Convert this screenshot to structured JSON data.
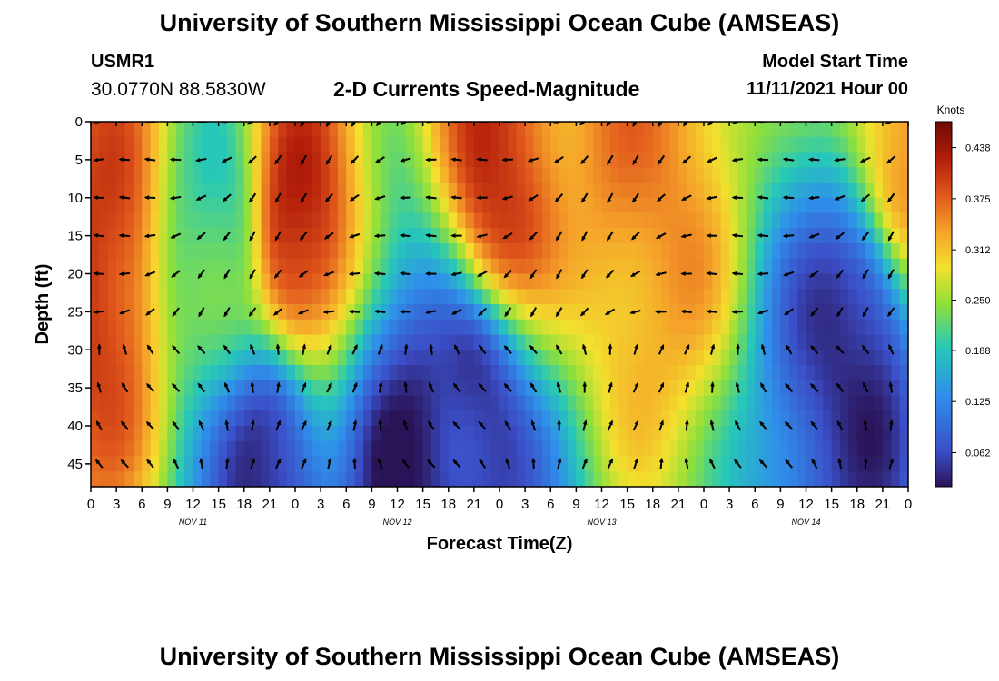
{
  "header": {
    "title": "University of Southern Mississippi Ocean Cube (AMSEAS)",
    "station_id": "USMR1",
    "station_coords": "30.0770N  88.5830W",
    "product": "2-D Currents Speed-Magnitude",
    "model_start_label": "Model Start Time",
    "model_start_value": "11/11/2021 Hour 00"
  },
  "footer": {
    "title": "University of Southern Mississippi Ocean Cube (AMSEAS)"
  },
  "chart_data": {
    "type": "heatmap",
    "title": "2-D Currents Speed-Magnitude",
    "xlabel": "Forecast Time(Z)",
    "ylabel": "Depth (ft)",
    "x_tick_labels": [
      "0",
      "3",
      "6",
      "9",
      "12",
      "15",
      "18",
      "21",
      "0",
      "3",
      "6",
      "9",
      "12",
      "15",
      "18",
      "21",
      "0",
      "3",
      "6",
      "9",
      "12",
      "15",
      "18",
      "21",
      "0",
      "3",
      "6",
      "9",
      "12",
      "15",
      "18",
      "21",
      "0"
    ],
    "x_hours": [
      0,
      3,
      6,
      9,
      12,
      15,
      18,
      21,
      24,
      27,
      30,
      33,
      36,
      39,
      42,
      45,
      48,
      51,
      54,
      57,
      60,
      63,
      66,
      69,
      72,
      75,
      78,
      81,
      84,
      87,
      90,
      93,
      96
    ],
    "xlim_hours": [
      0,
      96
    ],
    "date_labels": [
      {
        "text": "NOV 11",
        "hour": 12
      },
      {
        "text": "NOV 12",
        "hour": 36
      },
      {
        "text": "NOV 13",
        "hour": 60
      },
      {
        "text": "NOV 14",
        "hour": 84
      }
    ],
    "y_ticks": [
      0,
      5,
      10,
      15,
      20,
      25,
      30,
      35,
      40,
      45
    ],
    "ylim_ft": [
      0,
      48
    ],
    "colorbar": {
      "label": "Knots",
      "ticks": [
        "0.438",
        "0.375",
        "0.312",
        "0.250",
        "0.188",
        "0.125",
        "0.062"
      ],
      "range": [
        0.02,
        0.47
      ]
    },
    "speed_hotspots_knots": [
      {
        "hour": 1,
        "depth": 20,
        "speed": 0.44
      },
      {
        "hour": 15,
        "depth": 15,
        "speed": 0.22
      },
      {
        "hour": 24,
        "depth": 15,
        "speed": 0.46
      },
      {
        "hour": 48,
        "depth": 8,
        "speed": 0.44
      },
      {
        "hour": 65,
        "depth": 8,
        "speed": 0.38
      },
      {
        "hour": 96,
        "depth": 2,
        "speed": 0.38
      },
      {
        "hour": 21,
        "depth": 46,
        "speed": 0.04
      },
      {
        "hour": 38,
        "depth": 45,
        "speed": 0.03
      },
      {
        "hour": 45,
        "depth": 40,
        "speed": 0.04
      },
      {
        "hour": 90,
        "depth": 30,
        "speed": 0.04
      }
    ]
  }
}
